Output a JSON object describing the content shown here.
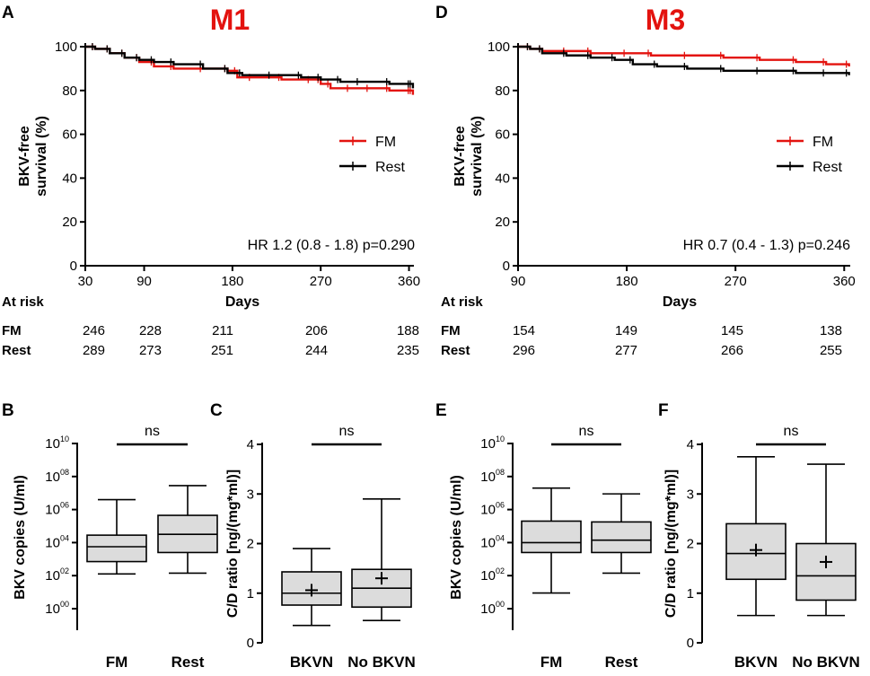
{
  "colors": {
    "fm": "#e3130f",
    "rest": "#000000",
    "box": "#dcdcdc",
    "title": "#e3130f"
  },
  "chart_data": [
    {
      "panel": "A",
      "type": "line",
      "title": "M1",
      "ylabel_lines": [
        "BKV-free",
        "survival (%)"
      ],
      "xlabel": "Days",
      "xlim": [
        30,
        365
      ],
      "ylim": [
        0,
        100
      ],
      "xticks": [
        30,
        90,
        180,
        270,
        360
      ],
      "yticks": [
        0,
        20,
        40,
        60,
        80,
        100
      ],
      "series": [
        {
          "name": "FM",
          "color": "#e3130f",
          "x": [
            30,
            40,
            55,
            70,
            85,
            100,
            120,
            150,
            175,
            185,
            200,
            230,
            260,
            270,
            280,
            300,
            320,
            340,
            362,
            364
          ],
          "y": [
            100,
            99,
            97,
            95,
            93,
            91,
            90,
            90,
            89,
            86,
            86,
            85,
            85,
            83,
            81,
            81,
            81,
            80,
            80,
            78
          ]
        },
        {
          "name": "Rest",
          "color": "#000000",
          "x": [
            30,
            40,
            55,
            70,
            85,
            100,
            120,
            150,
            175,
            190,
            220,
            250,
            270,
            290,
            310,
            340,
            362,
            364
          ],
          "y": [
            100,
            99,
            97,
            95,
            94,
            93,
            92,
            90,
            88,
            87,
            87,
            86,
            85,
            84,
            84,
            83,
            83,
            81
          ]
        }
      ],
      "legend": [
        "FM",
        "Rest"
      ],
      "annotation": "HR 1.2 (0.8 - 1.8) p=0.290",
      "at_risk": {
        "header": "At risk",
        "rows": [
          {
            "label": "FM",
            "values": [
              "246",
              "228",
              "211",
              "206",
              "188"
            ]
          },
          {
            "label": "Rest",
            "values": [
              "289",
              "273",
              "251",
              "244",
              "235"
            ]
          }
        ]
      }
    },
    {
      "panel": "D",
      "type": "line",
      "title": "M3",
      "ylabel_lines": [
        "BKV-free",
        "survival (%)"
      ],
      "xlabel": "Days",
      "xlim": [
        90,
        365
      ],
      "ylim": [
        0,
        100
      ],
      "xticks": [
        90,
        180,
        270,
        360
      ],
      "yticks": [
        0,
        20,
        40,
        60,
        80,
        100
      ],
      "series": [
        {
          "name": "FM",
          "color": "#e3130f",
          "x": [
            90,
            100,
            110,
            130,
            150,
            180,
            200,
            230,
            260,
            290,
            320,
            345,
            364
          ],
          "y": [
            100,
            99,
            98,
            98,
            97,
            97,
            96,
            96,
            95,
            94,
            93,
            92,
            91
          ]
        },
        {
          "name": "Rest",
          "color": "#000000",
          "x": [
            90,
            100,
            110,
            130,
            150,
            170,
            185,
            205,
            230,
            260,
            290,
            320,
            345,
            364
          ],
          "y": [
            100,
            99,
            97,
            96,
            95,
            94,
            92,
            91,
            90,
            89,
            89,
            88,
            88,
            87
          ]
        }
      ],
      "legend": [
        "FM",
        "Rest"
      ],
      "annotation": "HR 0.7 (0.4 - 1.3) p=0.246",
      "at_risk": {
        "header": "At risk",
        "rows": [
          {
            "label": "FM",
            "values": [
              "154",
              "149",
              "145",
              "138"
            ]
          },
          {
            "label": "Rest",
            "values": [
              "296",
              "277",
              "266",
              "255"
            ]
          }
        ]
      }
    },
    {
      "panel": "B",
      "type": "box",
      "scale": "log10",
      "ylim_exp": [
        -1,
        10
      ],
      "ylabel": "BKV copies (U/ml)",
      "ytick_exps": [
        "00",
        "02",
        "04",
        "06",
        "08",
        "10"
      ],
      "categories": [
        "FM",
        "Rest"
      ],
      "significance": "ns",
      "boxes": [
        {
          "min": 2.1,
          "q1": 2.85,
          "median": 3.75,
          "q3": 4.45,
          "max": 6.6
        },
        {
          "min": 2.15,
          "q1": 3.4,
          "median": 4.5,
          "q3": 5.65,
          "max": 7.45
        }
      ]
    },
    {
      "panel": "C",
      "type": "box",
      "ylim": [
        0,
        4
      ],
      "ylabel": "C/D ratio [ng/(mg*ml)]",
      "yticks": [
        "0",
        "1",
        "2",
        "3",
        "4"
      ],
      "categories": [
        "BKVN",
        "No BKVN"
      ],
      "significance": "ns",
      "boxes": [
        {
          "min": 0.35,
          "q1": 0.76,
          "median": 1.0,
          "q3": 1.43,
          "max": 1.9,
          "mean": 1.06
        },
        {
          "min": 0.45,
          "q1": 0.72,
          "median": 1.1,
          "q3": 1.48,
          "max": 2.9,
          "mean": 1.3
        }
      ]
    },
    {
      "panel": "E",
      "type": "box",
      "scale": "log10",
      "ylim_exp": [
        -1,
        10
      ],
      "ylabel": "BKV copies (U/ml)",
      "ytick_exps": [
        "00",
        "02",
        "04",
        "06",
        "08",
        "10"
      ],
      "categories": [
        "FM",
        "Rest"
      ],
      "significance": "ns",
      "boxes": [
        {
          "min": 0.95,
          "q1": 3.4,
          "median": 4.0,
          "q3": 5.3,
          "max": 7.3
        },
        {
          "min": 2.15,
          "q1": 3.4,
          "median": 4.15,
          "q3": 5.25,
          "max": 6.95
        }
      ]
    },
    {
      "panel": "F",
      "type": "box",
      "ylim": [
        0,
        4
      ],
      "ylabel": "C/D ratio [ng/(mg*ml)]",
      "yticks": [
        "0",
        "1",
        "2",
        "3",
        "4"
      ],
      "categories": [
        "BKVN",
        "No BKVN"
      ],
      "significance": "ns",
      "boxes": [
        {
          "min": 0.55,
          "q1": 1.28,
          "median": 1.8,
          "q3": 2.4,
          "max": 3.75,
          "mean": 1.87
        },
        {
          "min": 0.55,
          "q1": 0.86,
          "median": 1.35,
          "q3": 2.0,
          "max": 3.6,
          "mean": 1.63
        }
      ]
    }
  ]
}
